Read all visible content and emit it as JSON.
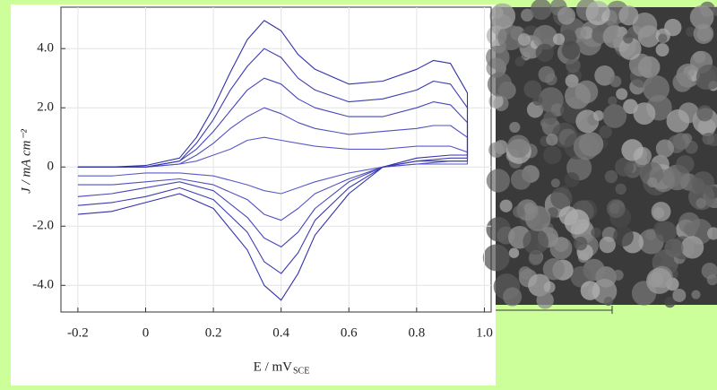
{
  "chart_data": {
    "type": "line",
    "y_label": "J / mA cm⁻²",
    "x_label": "E / mV",
    "x_label_subscript": "SCE",
    "x": [
      -0.2,
      -0.1,
      0,
      0.1,
      0.15,
      0.2,
      0.25,
      0.3,
      0.35,
      0.4,
      0.45,
      0.5,
      0.6,
      0.7,
      0.8,
      0.85,
      0.9,
      0.95,
      0.95,
      0.9,
      0.8,
      0.7,
      0.6,
      0.5,
      0.45,
      0.4,
      0.35,
      0.3,
      0.2,
      0.1,
      0,
      -0.1,
      -0.2
    ],
    "series": [
      {
        "color": "#5a5ac8",
        "values": [
          0,
          0,
          0,
          0.1,
          0.2,
          0.4,
          0.6,
          0.9,
          1.0,
          0.9,
          0.8,
          0.7,
          0.6,
          0.6,
          0.7,
          0.7,
          0.7,
          0.5,
          0.1,
          0.1,
          0.1,
          0,
          -0.2,
          -0.5,
          -0.7,
          -0.9,
          -0.8,
          -0.6,
          -0.3,
          -0.2,
          -0.2,
          -0.3,
          -0.3
        ]
      },
      {
        "color": "#5050c0",
        "values": [
          0,
          0,
          0,
          0.1,
          0.4,
          0.8,
          1.3,
          1.7,
          2.0,
          1.8,
          1.5,
          1.3,
          1.1,
          1.2,
          1.3,
          1.4,
          1.4,
          1.0,
          0.2,
          0.2,
          0.1,
          0,
          -0.4,
          -0.9,
          -1.4,
          -1.8,
          -1.6,
          -1.1,
          -0.6,
          -0.4,
          -0.5,
          -0.6,
          -0.6
        ]
      },
      {
        "color": "#4646b8",
        "values": [
          0,
          0,
          0,
          0.2,
          0.6,
          1.2,
          1.9,
          2.6,
          3.0,
          2.8,
          2.3,
          2.0,
          1.7,
          1.7,
          2.0,
          2.2,
          2.1,
          1.5,
          0.2,
          0.2,
          0.2,
          0,
          -0.5,
          -1.4,
          -2.2,
          -2.7,
          -2.4,
          -1.7,
          -0.8,
          -0.5,
          -0.7,
          -0.9,
          -1.0
        ]
      },
      {
        "color": "#3c3cb0",
        "values": [
          0,
          0,
          0,
          0.2,
          0.8,
          1.6,
          2.6,
          3.4,
          4.0,
          3.7,
          3.0,
          2.6,
          2.2,
          2.3,
          2.6,
          2.9,
          2.8,
          2.0,
          0.3,
          0.3,
          0.2,
          0,
          -0.7,
          -1.8,
          -2.9,
          -3.6,
          -3.2,
          -2.2,
          -1.1,
          -0.7,
          -1.0,
          -1.2,
          -1.3
        ]
      },
      {
        "color": "#3232a8",
        "values": [
          0,
          0,
          0.05,
          0.3,
          1.0,
          2.0,
          3.2,
          4.3,
          4.95,
          4.6,
          3.8,
          3.3,
          2.8,
          2.9,
          3.3,
          3.6,
          3.5,
          2.5,
          0.4,
          0.4,
          0.3,
          0,
          -0.9,
          -2.3,
          -3.6,
          -4.5,
          -4.0,
          -2.8,
          -1.4,
          -0.9,
          -1.2,
          -1.5,
          -1.6
        ]
      }
    ],
    "xlim": [
      -0.25,
      1.02
    ],
    "ylim": [
      -4.9,
      5.4
    ],
    "xticks": [
      -0.2,
      0,
      0.2,
      0.4,
      0.6,
      0.8,
      {
        "value": 1,
        "label": "1.0"
      }
    ],
    "yticks": [
      {
        "value": 4,
        "label": "4.0"
      },
      {
        "value": 2,
        "label": "2.0"
      },
      0,
      {
        "value": -2,
        "label": "-2.0"
      },
      {
        "value": -4,
        "label": "-4.0"
      }
    ],
    "grid": true
  }
}
